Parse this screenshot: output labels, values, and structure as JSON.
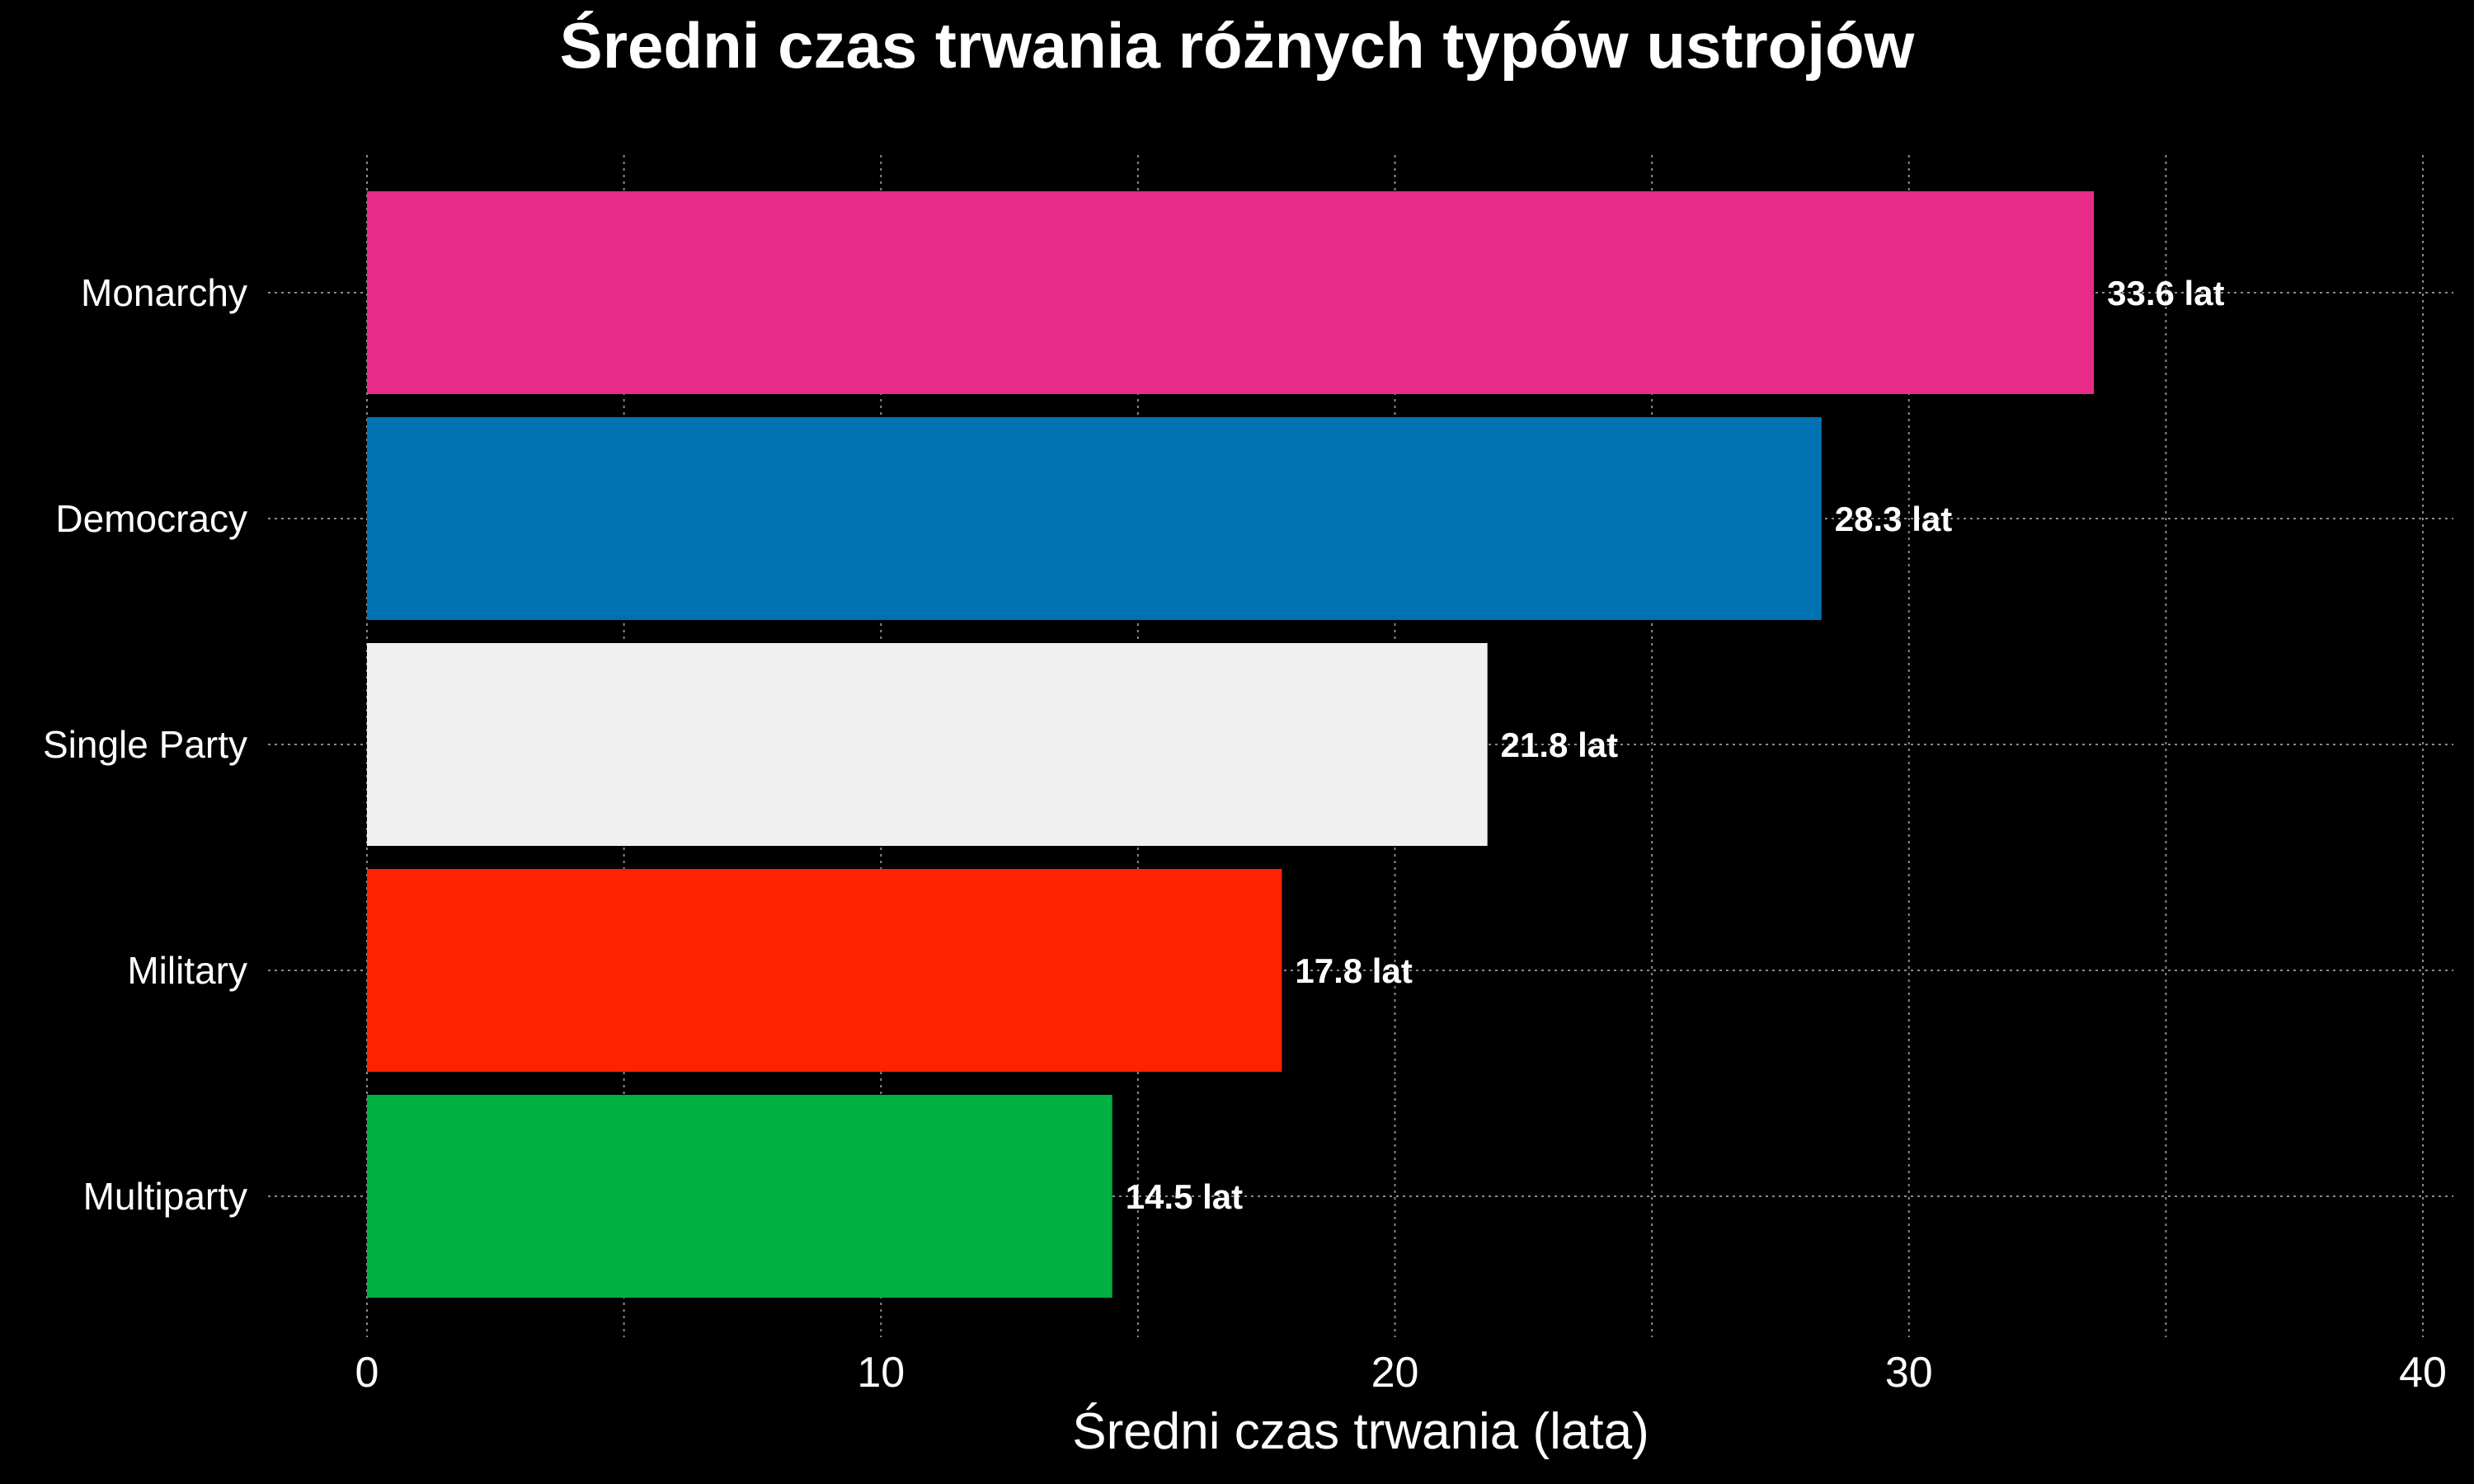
{
  "chart_data": {
    "type": "bar",
    "orientation": "horizontal",
    "title": "Średni czas trwania różnych typów ustrojów",
    "xlabel": "Średni czas trwania (lata)",
    "ylabel": "",
    "xlim": [
      0,
      40
    ],
    "xticks": [
      0,
      10,
      20,
      30,
      40
    ],
    "grid": true,
    "categories": [
      "Monarchy",
      "Democracy",
      "Single Party",
      "Military",
      "Multiparty"
    ],
    "values": [
      33.6,
      28.3,
      21.8,
      17.8,
      14.5
    ],
    "data_labels": [
      "33.6 lat",
      "28.3 lat",
      "21.8 lat",
      "17.8 lat",
      "14.5 lat"
    ],
    "colors": [
      "#e72b89",
      "#0072b2",
      "#f0f0f0",
      "#ff2200",
      "#00b040"
    ],
    "background": "#000000"
  }
}
